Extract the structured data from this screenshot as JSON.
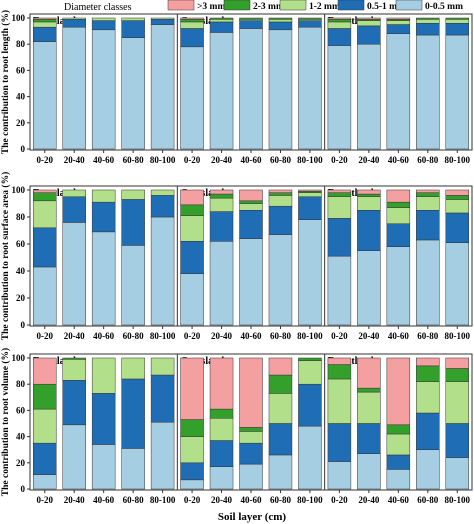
{
  "chart_data": {
    "type": "bar",
    "stacked": true,
    "categories": [
      "0-20",
      "20-40",
      "40-60",
      "60-80",
      "80-100"
    ],
    "x_label": "Soil layer (cm)",
    "ylim": [
      0,
      100
    ],
    "yticks": [
      0,
      20,
      40,
      60,
      80,
      100
    ],
    "grid": false,
    "legend": {
      "title": "Diameter classes",
      "placement": "top",
      "entries": [
        {
          "key": "gt3",
          "label": ">3 mm",
          "color": "#f4a0a0"
        },
        {
          "key": "c23",
          "label": "2-3 mm",
          "color": "#34a02c"
        },
        {
          "key": "c12",
          "label": "1-2 mm",
          "color": "#b2df8a"
        },
        {
          "key": "c051",
          "label": "0.5-1 mm",
          "color": "#1f6db4"
        },
        {
          "key": "c005",
          "label": "0-0.5 mm",
          "color": "#a6cee3"
        }
      ]
    },
    "stack_order": [
      "c005",
      "c051",
      "c12",
      "c23",
      "gt3"
    ],
    "land_uses": [
      "Farmland",
      "Grassland",
      "Forestland"
    ],
    "rows": [
      {
        "ylabel": "The contribution to root length (%)",
        "groups": [
          {
            "name": "Farmland",
            "bars": [
              {
                "c005": 82,
                "c051": 11,
                "c12": 4,
                "c23": 2,
                "gt3": 1
              },
              {
                "c005": 93,
                "c051": 6,
                "c12": 1,
                "c23": 0,
                "gt3": 0
              },
              {
                "c005": 91,
                "c051": 7,
                "c12": 2,
                "c23": 0,
                "gt3": 0
              },
              {
                "c005": 85,
                "c051": 13,
                "c12": 2,
                "c23": 0,
                "gt3": 0
              },
              {
                "c005": 95,
                "c051": 4,
                "c12": 1,
                "c23": 0,
                "gt3": 0
              }
            ]
          },
          {
            "name": "Grassland",
            "bars": [
              {
                "c005": 78,
                "c051": 14,
                "c12": 5,
                "c23": 2,
                "gt3": 1
              },
              {
                "c005": 89,
                "c051": 8,
                "c12": 2,
                "c23": 1,
                "gt3": 0
              },
              {
                "c005": 92,
                "c051": 6,
                "c12": 1,
                "c23": 1,
                "gt3": 0
              },
              {
                "c005": 91,
                "c051": 6,
                "c12": 2,
                "c23": 1,
                "gt3": 0
              },
              {
                "c005": 93,
                "c051": 5,
                "c12": 1,
                "c23": 1,
                "gt3": 0
              }
            ]
          },
          {
            "name": "Forestland",
            "bars": [
              {
                "c005": 79,
                "c051": 13,
                "c12": 5,
                "c23": 2,
                "gt3": 1
              },
              {
                "c005": 80,
                "c051": 14,
                "c12": 4,
                "c23": 1,
                "gt3": 1
              },
              {
                "c005": 88,
                "c051": 7,
                "c12": 3,
                "c23": 1,
                "gt3": 1
              },
              {
                "c005": 87,
                "c051": 9,
                "c12": 3,
                "c23": 1,
                "gt3": 0
              },
              {
                "c005": 87,
                "c051": 9,
                "c12": 3,
                "c23": 1,
                "gt3": 0
              }
            ]
          }
        ]
      },
      {
        "ylabel": "The contribution to root surface area (%)",
        "groups": [
          {
            "name": "Farmland",
            "bars": [
              {
                "c005": 43,
                "c051": 29,
                "c12": 20,
                "c23": 6,
                "gt3": 2
              },
              {
                "c005": 76,
                "c051": 19,
                "c12": 5,
                "c23": 0,
                "gt3": 0
              },
              {
                "c005": 69,
                "c051": 22,
                "c12": 9,
                "c23": 0,
                "gt3": 0
              },
              {
                "c005": 59,
                "c051": 34,
                "c12": 7,
                "c23": 0,
                "gt3": 0
              },
              {
                "c005": 80,
                "c051": 16,
                "c12": 4,
                "c23": 0,
                "gt3": 0
              }
            ]
          },
          {
            "name": "Grassland",
            "bars": [
              {
                "c005": 38,
                "c051": 24,
                "c12": 19,
                "c23": 8,
                "gt3": 11
              },
              {
                "c005": 62,
                "c051": 22,
                "c12": 10,
                "c23": 3,
                "gt3": 3
              },
              {
                "c005": 64,
                "c051": 21,
                "c12": 5,
                "c23": 2,
                "gt3": 8
              },
              {
                "c005": 67,
                "c051": 21,
                "c12": 8,
                "c23": 2,
                "gt3": 2
              },
              {
                "c005": 78,
                "c051": 17,
                "c12": 3,
                "c23": 1,
                "gt3": 1
              }
            ]
          },
          {
            "name": "Forestland",
            "bars": [
              {
                "c005": 51,
                "c051": 28,
                "c12": 16,
                "c23": 3,
                "gt3": 2
              },
              {
                "c005": 55,
                "c051": 30,
                "c12": 10,
                "c23": 2,
                "gt3": 3
              },
              {
                "c005": 58,
                "c051": 17,
                "c12": 12,
                "c23": 4,
                "gt3": 9
              },
              {
                "c005": 63,
                "c051": 22,
                "c12": 10,
                "c23": 3,
                "gt3": 2
              },
              {
                "c005": 61,
                "c051": 22,
                "c12": 10,
                "c23": 3,
                "gt3": 4
              }
            ]
          }
        ]
      },
      {
        "ylabel": "The contribution to root volume (%)",
        "groups": [
          {
            "name": "Farmland",
            "bars": [
              {
                "c005": 11,
                "c051": 24,
                "c12": 26,
                "c23": 19,
                "gt3": 20
              },
              {
                "c005": 49,
                "c051": 34,
                "c12": 16,
                "c23": 1,
                "gt3": 0
              },
              {
                "c005": 34,
                "c051": 39,
                "c12": 27,
                "c23": 0,
                "gt3": 0
              },
              {
                "c005": 31,
                "c051": 53,
                "c12": 16,
                "c23": 0,
                "gt3": 0
              },
              {
                "c005": 51,
                "c051": 36,
                "c12": 13,
                "c23": 0,
                "gt3": 0
              }
            ]
          },
          {
            "name": "Grassland",
            "bars": [
              {
                "c005": 7,
                "c051": 13,
                "c12": 20,
                "c23": 13,
                "gt3": 47
              },
              {
                "c005": 17,
                "c051": 20,
                "c12": 17,
                "c23": 7,
                "gt3": 39
              },
              {
                "c005": 19,
                "c051": 16,
                "c12": 9,
                "c23": 3,
                "gt3": 53
              },
              {
                "c005": 26,
                "c051": 24,
                "c12": 23,
                "c23": 14,
                "gt3": 13
              },
              {
                "c005": 48,
                "c051": 32,
                "c12": 18,
                "c23": 2,
                "gt3": 0
              }
            ]
          },
          {
            "name": "Forestland",
            "bars": [
              {
                "c005": 21,
                "c051": 29,
                "c12": 34,
                "c23": 11,
                "gt3": 5
              },
              {
                "c005": 27,
                "c051": 23,
                "c12": 24,
                "c23": 3,
                "gt3": 23
              },
              {
                "c005": 15,
                "c051": 11,
                "c12": 16,
                "c23": 7,
                "gt3": 51
              },
              {
                "c005": 30,
                "c051": 28,
                "c12": 24,
                "c23": 12,
                "gt3": 6
              },
              {
                "c005": 24,
                "c051": 26,
                "c12": 32,
                "c23": 10,
                "gt3": 8
              }
            ]
          }
        ]
      }
    ]
  }
}
